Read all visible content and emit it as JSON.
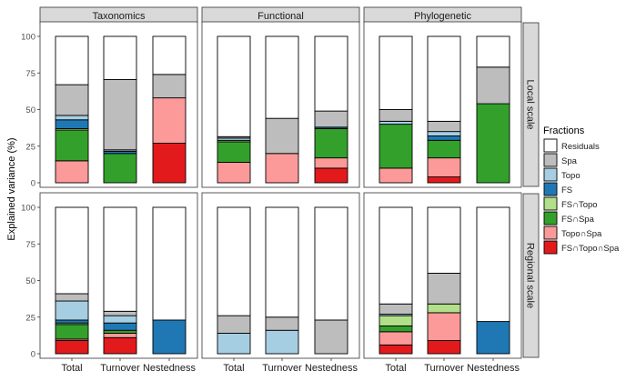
{
  "chart_data": {
    "type": "bar",
    "stacked": true,
    "ylabel": "Explained variance (%)",
    "ylim": [
      0,
      100
    ],
    "yticks": [
      0,
      25,
      50,
      75,
      100
    ],
    "grid": false,
    "legend_position": "right",
    "columns": [
      "Taxonomics",
      "Functional",
      "Phylogenetic"
    ],
    "rows": [
      "Local scale",
      "Regional scale"
    ],
    "categories": [
      "Total",
      "Turnover",
      "Nestedness"
    ],
    "legend": {
      "title": "Fractions",
      "items": [
        {
          "label": "Residuals",
          "color": "#ffffff"
        },
        {
          "label": "Spa",
          "color": "#bdbdbd"
        },
        {
          "label": "Topo",
          "color": "#a6cee3"
        },
        {
          "label": "FS",
          "color": "#1f78b4"
        },
        {
          "label": "FS∩Topo",
          "color": "#b2df8a"
        },
        {
          "label": "FS∩Spa",
          "color": "#33a02c"
        },
        {
          "label": "Topo∩Spa",
          "color": "#fb9a99"
        },
        {
          "label": "FS∩Topo∩Spa",
          "color": "#e31a1c"
        }
      ]
    },
    "stack_order": [
      "FS∩Topo∩Spa",
      "Topo∩Spa",
      "FS∩Spa",
      "FS∩Topo",
      "FS",
      "Topo",
      "Spa",
      "Residuals"
    ],
    "panels": [
      {
        "row": "Local scale",
        "column": "Taxonomics",
        "bars": [
          {
            "category": "Total",
            "values": {
              "FS∩Topo∩Spa": 0,
              "Topo∩Spa": 15,
              "FS∩Spa": 21,
              "FS∩Topo": 1,
              "FS": 6,
              "Topo": 3,
              "Spa": 21,
              "Residuals": 33
            }
          },
          {
            "category": "Turnover",
            "values": {
              "FS∩Topo∩Spa": 0,
              "Topo∩Spa": 0,
              "FS∩Spa": 20,
              "FS∩Topo": 0,
              "FS": 1.5,
              "Topo": 1,
              "Spa": 48,
              "Residuals": 29.5
            }
          },
          {
            "category": "Nestedness",
            "values": {
              "FS∩Topo∩Spa": 27,
              "Topo∩Spa": 31,
              "FS∩Spa": 0,
              "FS∩Topo": 0,
              "FS": 0,
              "Topo": 0,
              "Spa": 16,
              "Residuals": 26
            }
          }
        ]
      },
      {
        "row": "Local scale",
        "column": "Functional",
        "bars": [
          {
            "category": "Total",
            "values": {
              "FS∩Topo∩Spa": 0,
              "Topo∩Spa": 14,
              "FS∩Spa": 14,
              "FS∩Topo": 1,
              "FS": 0,
              "Topo": 1.5,
              "Spa": 1,
              "Residuals": 68.5
            }
          },
          {
            "category": "Turnover",
            "values": {
              "FS∩Topo∩Spa": 0,
              "Topo∩Spa": 20,
              "FS∩Spa": 0,
              "FS∩Topo": 0,
              "FS": 0,
              "Topo": 0,
              "Spa": 24,
              "Residuals": 56
            }
          },
          {
            "category": "Nestedness",
            "values": {
              "FS∩Topo∩Spa": 10,
              "Topo∩Spa": 7,
              "FS∩Spa": 20,
              "FS∩Topo": 0,
              "FS": 1,
              "Topo": 0,
              "Spa": 11,
              "Residuals": 51
            }
          }
        ]
      },
      {
        "row": "Local scale",
        "column": "Phylogenetic",
        "bars": [
          {
            "category": "Total",
            "values": {
              "FS∩Topo∩Spa": 0,
              "Topo∩Spa": 10,
              "FS∩Spa": 30,
              "FS∩Topo": 0,
              "FS": 0,
              "Topo": 2,
              "Spa": 8,
              "Residuals": 50
            }
          },
          {
            "category": "Turnover",
            "values": {
              "FS∩Topo∩Spa": 4,
              "Topo∩Spa": 13,
              "FS∩Spa": 12,
              "FS∩Topo": 0,
              "FS": 3,
              "Topo": 3,
              "Spa": 7,
              "Residuals": 58
            }
          },
          {
            "category": "Nestedness",
            "values": {
              "FS∩Topo∩Spa": 0,
              "Topo∩Spa": 0,
              "FS∩Spa": 54,
              "FS∩Topo": 0,
              "FS": 0,
              "Topo": 0,
              "Spa": 25,
              "Residuals": 21
            }
          }
        ]
      },
      {
        "row": "Regional scale",
        "column": "Taxonomics",
        "bars": [
          {
            "category": "Total",
            "values": {
              "FS∩Topo∩Spa": 9,
              "Topo∩Spa": 1,
              "FS∩Spa": 10,
              "FS∩Topo": 1,
              "FS": 2,
              "Topo": 13,
              "Spa": 5,
              "Residuals": 59
            }
          },
          {
            "category": "Turnover",
            "values": {
              "FS∩Topo∩Spa": 11,
              "Topo∩Spa": 3,
              "FS∩Spa": 2,
              "FS∩Topo": 0,
              "FS": 5,
              "Topo": 5,
              "Spa": 3,
              "Residuals": 71
            }
          },
          {
            "category": "Nestedness",
            "values": {
              "FS∩Topo∩Spa": 0,
              "Topo∩Spa": 0,
              "FS∩Spa": 0,
              "FS∩Topo": 0,
              "FS": 23,
              "Topo": 0,
              "Spa": 0,
              "Residuals": 77
            }
          }
        ]
      },
      {
        "row": "Regional scale",
        "column": "Functional",
        "bars": [
          {
            "category": "Total",
            "values": {
              "FS∩Topo∩Spa": 0,
              "Topo∩Spa": 0,
              "FS∩Spa": 0,
              "FS∩Topo": 0,
              "FS": 0,
              "Topo": 14,
              "Spa": 12,
              "Residuals": 74
            }
          },
          {
            "category": "Turnover",
            "values": {
              "FS∩Topo∩Spa": 0,
              "Topo∩Spa": 0,
              "FS∩Spa": 0,
              "FS∩Topo": 0,
              "FS": 0,
              "Topo": 16,
              "Spa": 9,
              "Residuals": 75
            }
          },
          {
            "category": "Nestedness",
            "values": {
              "FS∩Topo∩Spa": 0,
              "Topo∩Spa": 0,
              "FS∩Spa": 0,
              "FS∩Topo": 0,
              "FS": 0,
              "Topo": 0,
              "Spa": 23,
              "Residuals": 77
            }
          }
        ]
      },
      {
        "row": "Regional scale",
        "column": "Phylogenetic",
        "bars": [
          {
            "category": "Total",
            "values": {
              "FS∩Topo∩Spa": 6,
              "Topo∩Spa": 9,
              "FS∩Spa": 4,
              "FS∩Topo": 7,
              "FS": 0,
              "Topo": 1,
              "Spa": 7,
              "Residuals": 66
            }
          },
          {
            "category": "Turnover",
            "values": {
              "FS∩Topo∩Spa": 9,
              "Topo∩Spa": 19,
              "FS∩Spa": 0,
              "FS∩Topo": 6,
              "FS": 0,
              "Topo": 0,
              "Spa": 21,
              "Residuals": 45
            }
          },
          {
            "category": "Nestedness",
            "values": {
              "FS∩Topo∩Spa": 0,
              "Topo∩Spa": 0,
              "FS∩Spa": 0,
              "FS∩Topo": 0,
              "FS": 22,
              "Topo": 0,
              "Spa": 0,
              "Residuals": 78
            }
          }
        ]
      }
    ]
  }
}
